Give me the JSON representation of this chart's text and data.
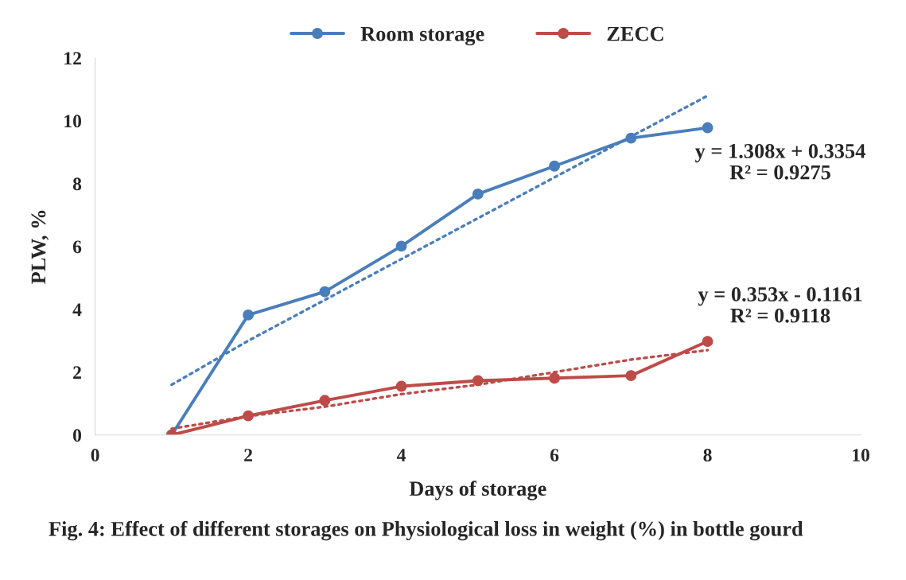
{
  "chart_data": {
    "type": "line",
    "title": "Fig. 4: Effect of different storages on Physiological loss in weight (%) in bottle gourd",
    "xlabel": "Days of storage",
    "ylabel": "PLW, %",
    "x": [
      1,
      2,
      3,
      4,
      5,
      6,
      7,
      8
    ],
    "series": [
      {
        "name": "Room storage",
        "color": "#4a7ebb",
        "marker": "circle",
        "line_style": "solid",
        "values": [
          0,
          3.82,
          4.56,
          6.01,
          7.67,
          8.56,
          9.45,
          9.78
        ]
      },
      {
        "name": "ZECC",
        "color": "#be4b48",
        "marker": "circle",
        "line_style": "solid",
        "values": [
          0,
          0.61,
          1.1,
          1.55,
          1.73,
          1.81,
          1.89,
          2.98
        ]
      },
      {
        "color": "#4a7ebb",
        "marker": "none",
        "line_style": "dotted",
        "values": [
          1.6,
          3.0,
          4.3,
          5.6,
          6.9,
          8.2,
          9.5,
          10.8
        ]
      },
      {
        "color": "#be4b48",
        "marker": "none",
        "line_style": "dotted",
        "values": [
          0.2,
          0.6,
          0.9,
          1.3,
          1.6,
          2.0,
          2.4,
          2.7
        ]
      }
    ],
    "annotations": [
      "y = 1.308x + 0.3354\nR² = 0.9275",
      "y = 0.353x - 0.1161\nR² = 0.9118"
    ],
    "xlim": [
      0,
      10
    ],
    "xticks": [
      0,
      2,
      4,
      6,
      8,
      10
    ],
    "ylim": [
      0,
      12
    ],
    "yticks": [
      0,
      2,
      4,
      6,
      8,
      10,
      12
    ],
    "grid": false,
    "legend": "top"
  }
}
